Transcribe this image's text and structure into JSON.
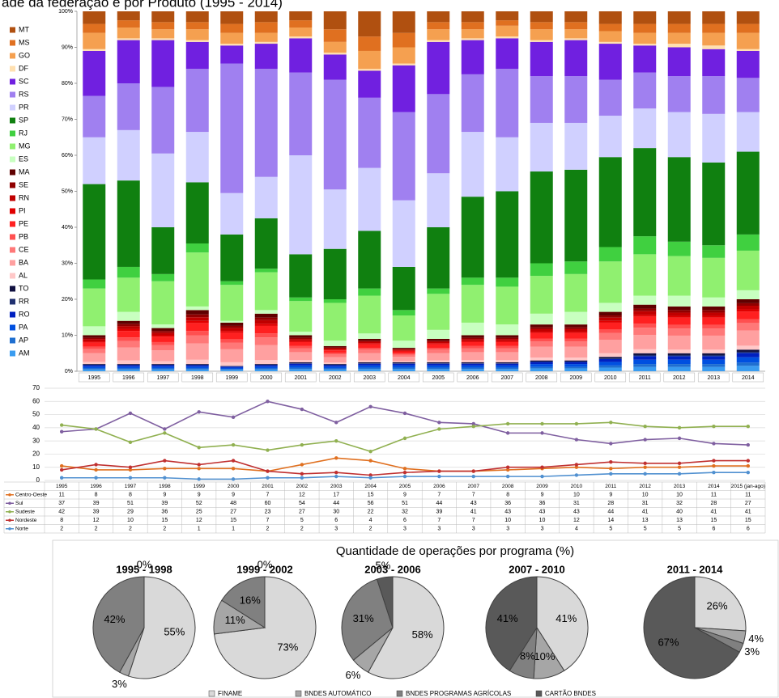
{
  "chart_data": [
    {
      "type": "bar",
      "stacked": true,
      "title": "ade da federação e por Produto (1995 - 2014)",
      "categories": [
        "1995",
        "1996",
        "1997",
        "1998",
        "1999",
        "2000",
        "2001",
        "2002",
        "2003",
        "2004",
        "2005",
        "2006",
        "2007",
        "2008",
        "2009",
        "2010",
        "2011",
        "2012",
        "2013",
        "2014"
      ],
      "ylim": [
        0,
        100
      ],
      "yticks": [
        {
          "value": 0,
          "label": "0%"
        },
        {
          "value": 10,
          "label": "10%"
        },
        {
          "value": 20,
          "label": "20%"
        },
        {
          "value": 30,
          "label": "30%"
        },
        {
          "value": 40,
          "label": "40%"
        },
        {
          "value": 50,
          "label": "50%"
        },
        {
          "value": 60,
          "label": "60%"
        },
        {
          "value": 70,
          "label": "70%"
        },
        {
          "value": 80,
          "label": "80%"
        },
        {
          "value": 90,
          "label": "90%"
        },
        {
          "value": 100,
          "label": "100%"
        }
      ],
      "grid": false,
      "series": [
        {
          "name": "AM",
          "color": "#3a9cf0",
          "values": [
            0.5,
            0.5,
            0.5,
            0.5,
            0.4,
            0.5,
            0.6,
            0.5,
            0.6,
            0.6,
            0.6,
            0.6,
            0.6,
            0.8,
            0.8,
            1,
            1.2,
            1.2,
            1.2,
            1.5
          ]
        },
        {
          "name": "AP",
          "color": "#1f6fd0",
          "values": [
            0.3,
            0.3,
            0.3,
            0.3,
            0.2,
            0.3,
            0.4,
            0.3,
            0.4,
            0.4,
            0.4,
            0.4,
            0.4,
            0.4,
            0.4,
            0.6,
            0.8,
            0.8,
            0.8,
            0.9
          ]
        },
        {
          "name": "PA",
          "color": "#0050e0",
          "values": [
            0.5,
            0.5,
            0.5,
            0.5,
            0.4,
            0.5,
            0.6,
            0.5,
            0.6,
            0.6,
            0.6,
            0.6,
            0.6,
            0.8,
            0.8,
            1,
            1.2,
            1.2,
            1.2,
            1.5
          ]
        },
        {
          "name": "RO",
          "color": "#0020c0",
          "values": [
            0.4,
            0.4,
            0.4,
            0.4,
            0.3,
            0.4,
            0.5,
            0.4,
            0.5,
            0.5,
            0.5,
            0.5,
            0.5,
            0.6,
            0.6,
            0.8,
            1,
            1,
            1,
            1.2
          ]
        },
        {
          "name": "RR",
          "color": "#203070",
          "values": [
            0.1,
            0.1,
            0.1,
            0.1,
            0.1,
            0.1,
            0.1,
            0.1,
            0.1,
            0.1,
            0.1,
            0.1,
            0.1,
            0.1,
            0.1,
            0.2,
            0.3,
            0.3,
            0.3,
            0.3
          ]
        },
        {
          "name": "TO",
          "color": "#101040",
          "values": [
            0.2,
            0.2,
            0.2,
            0.2,
            0.1,
            0.2,
            0.3,
            0.2,
            0.3,
            0.3,
            0.3,
            0.3,
            0.3,
            0.3,
            0.3,
            0.4,
            0.5,
            0.5,
            0.5,
            0.6
          ]
        },
        {
          "name": "AL",
          "color": "#ffc8c8",
          "values": [
            0.6,
            1,
            0.8,
            1.2,
            1,
            1.1,
            0.6,
            0.4,
            0.5,
            0.3,
            0.5,
            0.6,
            0.6,
            0.8,
            0.8,
            1,
            1.1,
            1,
            1,
            1.1
          ]
        },
        {
          "name": "BA",
          "color": "#ffa0a0",
          "values": [
            2.4,
            3.6,
            3,
            4.5,
            3.6,
            4.2,
            2.2,
            1.5,
            2,
            1.2,
            2,
            2.2,
            2.2,
            3,
            3,
            3.7,
            4,
            3.9,
            3.9,
            4.2
          ]
        },
        {
          "name": "CE",
          "color": "#ff7878",
          "values": [
            1.2,
            1.8,
            1.5,
            2.3,
            1.8,
            2.1,
            1.1,
            0.8,
            1,
            0.6,
            1,
            1.1,
            1.1,
            1.5,
            1.5,
            1.9,
            2,
            2,
            2,
            2.1
          ]
        },
        {
          "name": "PB",
          "color": "#ff5050",
          "values": [
            0.6,
            1,
            0.8,
            1.2,
            1,
            1.1,
            0.6,
            0.4,
            0.5,
            0.3,
            0.5,
            0.6,
            0.6,
            0.8,
            0.8,
            1,
            1.1,
            1,
            1,
            1.1
          ]
        },
        {
          "name": "PE",
          "color": "#ff2020",
          "values": [
            1.2,
            1.8,
            1.5,
            2.2,
            1.8,
            2.1,
            1.1,
            0.7,
            1,
            0.6,
            1,
            1.1,
            1.1,
            1.5,
            1.5,
            1.9,
            2,
            2,
            2,
            2.1
          ]
        },
        {
          "name": "PI",
          "color": "#e00000",
          "values": [
            0.3,
            0.5,
            0.4,
            0.6,
            0.5,
            0.6,
            0.3,
            0.2,
            0.3,
            0.2,
            0.3,
            0.3,
            0.3,
            0.4,
            0.4,
            0.5,
            0.5,
            0.5,
            0.5,
            0.6
          ]
        },
        {
          "name": "RN",
          "color": "#c00000",
          "values": [
            0.6,
            0.8,
            0.7,
            1,
            0.8,
            1,
            0.5,
            0.4,
            0.4,
            0.3,
            0.4,
            0.5,
            0.5,
            0.7,
            0.7,
            0.9,
            1,
            0.9,
            0.9,
            1
          ]
        },
        {
          "name": "SE",
          "color": "#900000",
          "values": [
            0.4,
            0.6,
            0.5,
            0.8,
            0.6,
            0.7,
            0.4,
            0.2,
            0.3,
            0.2,
            0.3,
            0.4,
            0.4,
            0.5,
            0.5,
            0.6,
            0.7,
            0.7,
            0.7,
            0.7
          ]
        },
        {
          "name": "MA",
          "color": "#600000",
          "values": [
            0.7,
            0.9,
            0.8,
            1.2,
            0.9,
            1.1,
            0.7,
            0.4,
            0.5,
            0.3,
            0.5,
            0.7,
            0.7,
            0.8,
            0.8,
            1,
            1.1,
            1,
            1,
            1.1
          ]
        },
        {
          "name": "ES",
          "color": "#c8ffc0",
          "values": [
            2.5,
            2.5,
            1,
            1,
            0.5,
            1,
            1,
            1.5,
            1.5,
            2,
            2.5,
            3.5,
            3,
            3,
            3.5,
            2.5,
            2.5,
            3,
            2.5,
            2.5
          ]
        },
        {
          "name": "MG",
          "color": "#90f070",
          "values": [
            10.5,
            9.5,
            12,
            15,
            10,
            10.5,
            8.5,
            10.5,
            10.5,
            7,
            10,
            10.5,
            10.5,
            10.5,
            10.5,
            11.5,
            11.5,
            11,
            11,
            11
          ]
        },
        {
          "name": "RJ",
          "color": "#40d040",
          "values": [
            2.5,
            3,
            2,
            2.5,
            1,
            1,
            1,
            1,
            2,
            1.5,
            1.5,
            2,
            2.5,
            3.5,
            3.5,
            4,
            5,
            4,
            3.5,
            4.5
          ]
        },
        {
          "name": "SP",
          "color": "#108010",
          "values": [
            26.5,
            24,
            13,
            17,
            13,
            14,
            12,
            14,
            16,
            12,
            17,
            22.5,
            24,
            25.5,
            25.5,
            25,
            24.5,
            23.5,
            23,
            23
          ]
        },
        {
          "name": "PR",
          "color": "#d0d0ff",
          "values": [
            13,
            14,
            20.5,
            14,
            11.5,
            11.5,
            27.5,
            16.5,
            17.5,
            18.5,
            15,
            18,
            15,
            13.5,
            13,
            11.5,
            11,
            12.5,
            13.5,
            11
          ]
        },
        {
          "name": "RS",
          "color": "#a080f0",
          "values": [
            11.5,
            13,
            18.5,
            17.5,
            36,
            30,
            23,
            30.5,
            19.5,
            24.5,
            22,
            16,
            19,
            13,
            13,
            10,
            10,
            10,
            10.5,
            9.5
          ]
        },
        {
          "name": "SC",
          "color": "#7020e0",
          "values": [
            12.5,
            12,
            13,
            7.5,
            5,
            7,
            9.5,
            7,
            7.5,
            13,
            14.5,
            9.5,
            8.5,
            9.5,
            10,
            10,
            7.5,
            8,
            7.5,
            7.5
          ]
        },
        {
          "name": "DF",
          "color": "#ffe0b0",
          "values": [
            0.5,
            0.5,
            0.5,
            0.5,
            0.5,
            0.5,
            0.5,
            0.5,
            0.5,
            0.5,
            0.5,
            0.5,
            0.5,
            0.5,
            0.5,
            0.5,
            0.5,
            1,
            1,
            0.5
          ]
        },
        {
          "name": "GO",
          "color": "#f5a050",
          "values": [
            4.5,
            3,
            2.5,
            3,
            3,
            2.5,
            2.5,
            3,
            5,
            4.5,
            3,
            2.5,
            3,
            3,
            2.5,
            3,
            3,
            3,
            3.5,
            4.5
          ]
        },
        {
          "name": "MS",
          "color": "#e07020",
          "values": [
            2.5,
            2,
            2,
            2,
            2.5,
            3,
            2,
            3.5,
            4,
            4,
            2,
            2,
            1.5,
            2,
            2,
            2,
            2.5,
            2.5,
            2.5,
            2.5
          ]
        },
        {
          "name": "MT",
          "color": "#b05010",
          "values": [
            3.5,
            2.5,
            3,
            3,
            3.5,
            3,
            2.5,
            5,
            7,
            6,
            3,
            3,
            2.5,
            3,
            3,
            3.5,
            3.5,
            3.5,
            3.5,
            3.5
          ]
        }
      ]
    },
    {
      "type": "line",
      "categories": [
        "1995",
        "1996",
        "1997",
        "1998",
        "1999",
        "2000",
        "2001",
        "2002",
        "2003",
        "2004",
        "2005",
        "2006",
        "2007",
        "2008",
        "2009",
        "2010",
        "2011",
        "2012",
        "2013",
        "2014",
        "2015 (jan-ago)"
      ],
      "ylim": [
        0,
        70
      ],
      "yticks": [
        0,
        10,
        20,
        30,
        40,
        50,
        60,
        70
      ],
      "grid": true,
      "series": [
        {
          "name": "Centro-Oeste",
          "color": "#e07020",
          "values": [
            11,
            8,
            8,
            9,
            9,
            9,
            7,
            12,
            17,
            15,
            9,
            7,
            7,
            8,
            9,
            10,
            9,
            10,
            10,
            11,
            11
          ]
        },
        {
          "name": "Sul",
          "color": "#7f5fa0",
          "values": [
            37,
            39,
            51,
            39,
            52,
            48,
            60,
            54,
            44,
            56,
            51,
            44,
            43,
            36,
            36,
            31,
            28,
            31,
            32,
            28,
            27
          ]
        },
        {
          "name": "Sudeste",
          "color": "#90b050",
          "values": [
            42,
            39,
            29,
            36,
            25,
            27,
            23,
            27,
            30,
            22,
            32,
            39,
            41,
            43,
            43,
            43,
            44,
            41,
            40,
            41,
            41
          ]
        },
        {
          "name": "Nordeste",
          "color": "#c03030",
          "values": [
            8,
            12,
            10,
            15,
            12,
            15,
            7,
            5,
            6,
            4,
            6,
            7,
            7,
            10,
            10,
            12,
            14,
            13,
            13,
            15,
            15
          ]
        },
        {
          "name": "Norte",
          "color": "#5090d0",
          "values": [
            2,
            2,
            2,
            2,
            1,
            1,
            2,
            2,
            3,
            2,
            3,
            3,
            3,
            3,
            3,
            4,
            5,
            5,
            5,
            6,
            6
          ]
        }
      ]
    },
    {
      "type": "pie",
      "title": "Quantidade de operações por programa (%)",
      "categories": [
        "FINAME",
        "BNDES AUTOMÁTICO",
        "BNDES PROGRAMAS AGRÍCOLAS",
        "CARTÃO BNDES"
      ],
      "colors": [
        "#d9d9d9",
        "#a6a6a6",
        "#808080",
        "#595959"
      ],
      "pies": [
        {
          "title": "1995 - 1998",
          "values": [
            55,
            3,
            42,
            0
          ],
          "value_labels": [
            "55%",
            "3%",
            "42%",
            "0%"
          ]
        },
        {
          "title": "1999 - 2002",
          "values": [
            73,
            11,
            16,
            0
          ],
          "value_labels": [
            "73%",
            "11%",
            "16%",
            "0%"
          ]
        },
        {
          "title": "2003 - 2006",
          "values": [
            58,
            6,
            31,
            5
          ],
          "value_labels": [
            "58%",
            "6%",
            "31%",
            "5%"
          ]
        },
        {
          "title": "2007 - 2010",
          "values": [
            41,
            10,
            8,
            41
          ],
          "value_labels": [
            "41%",
            "10%",
            "8%",
            "41%"
          ]
        },
        {
          "title": "2011 - 2014",
          "values": [
            26,
            4,
            3,
            67
          ],
          "value_labels": [
            "26%",
            "4%",
            "3%",
            "67%"
          ]
        }
      ]
    }
  ]
}
